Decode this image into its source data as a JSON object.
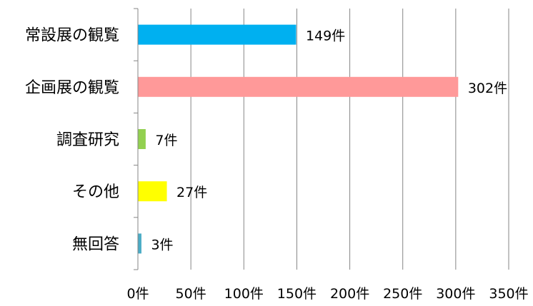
{
  "chart_data": {
    "type": "bar",
    "orientation": "horizontal",
    "categories": [
      "常設展の観覧",
      "企画展の観覧",
      "調査研究",
      "その他",
      "無回答"
    ],
    "values": [
      149,
      302,
      7,
      27,
      3
    ],
    "value_labels": [
      "149件",
      "302件",
      "7件",
      "27件",
      "3件"
    ],
    "colors": [
      "#00b0f0",
      "#ff9999",
      "#92d050",
      "#ffff00",
      "#4bacc6"
    ],
    "xlim": [
      0,
      350
    ],
    "x_ticks": [
      0,
      50,
      100,
      150,
      200,
      250,
      300,
      350
    ],
    "x_tick_labels": [
      "0件",
      "50件",
      "100件",
      "150件",
      "200件",
      "250件",
      "300件",
      "350件"
    ],
    "title": "",
    "xlabel": "",
    "ylabel": "",
    "grid": true,
    "legend": false
  }
}
